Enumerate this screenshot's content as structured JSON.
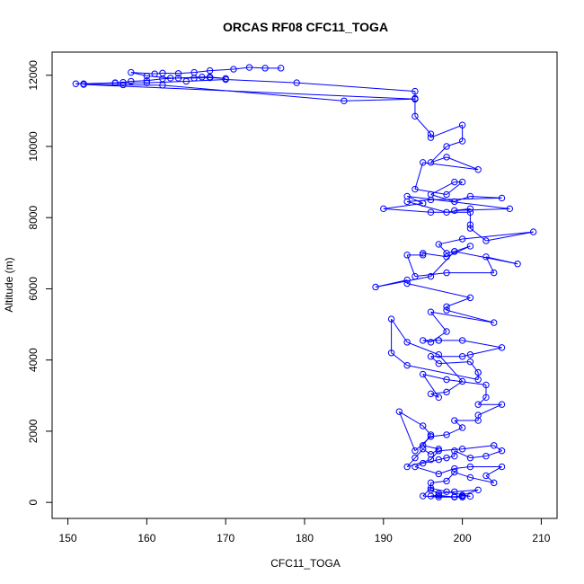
{
  "chart_data": {
    "type": "line",
    "title": "ORCAS RF08 CFC11_TOGA",
    "xlabel": "CFC11_TOGA",
    "ylabel": "Altitude (m)",
    "xlim": [
      148,
      212
    ],
    "ylim": [
      -450,
      12650
    ],
    "xticks": [
      150,
      160,
      170,
      180,
      190,
      200,
      210
    ],
    "yticks": [
      0,
      2000,
      4000,
      6000,
      8000,
      10000,
      12000
    ],
    "series": [
      {
        "color": "#0000ff",
        "markers": "open-circle",
        "points": [
          [
            177,
            12200
          ],
          [
            175,
            12200
          ],
          [
            173,
            12220
          ],
          [
            171,
            12170
          ],
          [
            168,
            12130
          ],
          [
            166,
            12080
          ],
          [
            164,
            12050
          ],
          [
            162,
            12060
          ],
          [
            161,
            12040
          ],
          [
            158,
            12080
          ],
          [
            160,
            11980
          ],
          [
            163,
            11920
          ],
          [
            166,
            11920
          ],
          [
            168,
            11930
          ],
          [
            170,
            11910
          ],
          [
            168,
            11950
          ],
          [
            167,
            11950
          ],
          [
            164,
            11920
          ],
          [
            162,
            11900
          ],
          [
            160,
            11850
          ],
          [
            158,
            11830
          ],
          [
            157,
            11800
          ],
          [
            156,
            11790
          ],
          [
            152,
            11760
          ],
          [
            151,
            11760
          ],
          [
            156,
            11780
          ],
          [
            160,
            11790
          ],
          [
            165,
            11830
          ],
          [
            170,
            11880
          ],
          [
            179,
            11790
          ],
          [
            194,
            11550
          ],
          [
            194,
            11350
          ],
          [
            194,
            11330
          ],
          [
            185,
            11280
          ],
          [
            162,
            11720
          ],
          [
            157,
            11730
          ],
          [
            152,
            11740
          ],
          [
            194,
            11330
          ],
          [
            194,
            10850
          ],
          [
            196,
            10350
          ],
          [
            196,
            10250
          ],
          [
            200,
            10600
          ],
          [
            200,
            10150
          ],
          [
            198,
            10000
          ],
          [
            196,
            9550
          ],
          [
            198,
            9700
          ],
          [
            202,
            9350
          ],
          [
            195,
            9550
          ],
          [
            194,
            8800
          ],
          [
            198,
            8650
          ],
          [
            200,
            9000
          ],
          [
            199,
            9000
          ],
          [
            196,
            8650
          ],
          [
            199,
            8450
          ],
          [
            201,
            8600
          ],
          [
            205,
            8550
          ],
          [
            196,
            8500
          ],
          [
            193,
            8450
          ],
          [
            198,
            8150
          ],
          [
            201,
            8250
          ],
          [
            199,
            8200
          ],
          [
            206,
            8250
          ],
          [
            193,
            8600
          ],
          [
            195,
            8400
          ],
          [
            190,
            8250
          ],
          [
            196,
            8150
          ],
          [
            201,
            8150
          ],
          [
            201,
            7800
          ],
          [
            201,
            7700
          ],
          [
            203,
            7350
          ],
          [
            209,
            7600
          ],
          [
            200,
            7400
          ],
          [
            197,
            7250
          ],
          [
            198,
            7000
          ],
          [
            199,
            7050
          ],
          [
            201,
            7200
          ],
          [
            198,
            6900
          ],
          [
            195,
            7000
          ],
          [
            195,
            6950
          ],
          [
            193,
            6950
          ],
          [
            194,
            6350
          ],
          [
            198,
            6450
          ],
          [
            204,
            6450
          ],
          [
            203,
            6900
          ],
          [
            207,
            6700
          ],
          [
            199,
            7050
          ],
          [
            196,
            6350
          ],
          [
            189,
            6050
          ],
          [
            193,
            6250
          ],
          [
            193,
            6150
          ],
          [
            201,
            5750
          ],
          [
            198,
            5500
          ],
          [
            198,
            5400
          ],
          [
            204,
            5050
          ],
          [
            196,
            5350
          ],
          [
            198,
            4800
          ],
          [
            196,
            4500
          ],
          [
            195,
            4550
          ],
          [
            197,
            4550
          ],
          [
            197,
            4550
          ],
          [
            200,
            4550
          ],
          [
            205,
            4350
          ],
          [
            201,
            4150
          ],
          [
            200,
            4100
          ],
          [
            196,
            4100
          ],
          [
            197,
            3900
          ],
          [
            201,
            3950
          ],
          [
            202,
            3650
          ],
          [
            202,
            3650
          ],
          [
            202,
            3450
          ],
          [
            193,
            3850
          ],
          [
            191,
            4200
          ],
          [
            191,
            5150
          ],
          [
            193,
            4500
          ],
          [
            197,
            4150
          ],
          [
            200,
            3400
          ],
          [
            198,
            3100
          ],
          [
            196,
            3050
          ],
          [
            197,
            2950
          ],
          [
            195,
            3600
          ],
          [
            198,
            3450
          ],
          [
            203,
            3300
          ],
          [
            203,
            2950
          ],
          [
            202,
            2750
          ],
          [
            205,
            2750
          ],
          [
            202,
            2450
          ],
          [
            202,
            2300
          ],
          [
            199,
            2300
          ],
          [
            200,
            2100
          ],
          [
            198,
            1900
          ],
          [
            196,
            1850
          ],
          [
            194,
            1450
          ],
          [
            192,
            2550
          ],
          [
            195,
            2150
          ],
          [
            196,
            1900
          ],
          [
            195,
            1600
          ],
          [
            197,
            1500
          ],
          [
            196,
            1350
          ],
          [
            195,
            1500
          ],
          [
            194,
            1250
          ],
          [
            193,
            1000
          ],
          [
            196,
            1200
          ],
          [
            197,
            1450
          ],
          [
            200,
            1500
          ],
          [
            204,
            1600
          ],
          [
            205,
            1450
          ],
          [
            203,
            1300
          ],
          [
            201,
            1250
          ],
          [
            199,
            1450
          ],
          [
            199,
            1300
          ],
          [
            198,
            1250
          ],
          [
            197,
            1200
          ],
          [
            195,
            1100
          ],
          [
            194,
            1000
          ],
          [
            197,
            800
          ],
          [
            199,
            950
          ],
          [
            201,
            1000
          ],
          [
            205,
            1000
          ],
          [
            203,
            750
          ],
          [
            204,
            550
          ],
          [
            201,
            700
          ],
          [
            199,
            850
          ],
          [
            198,
            600
          ],
          [
            196,
            550
          ],
          [
            196,
            350
          ],
          [
            197,
            250
          ],
          [
            199,
            300
          ],
          [
            202,
            350
          ],
          [
            200,
            200
          ],
          [
            199,
            150
          ],
          [
            197,
            200
          ],
          [
            196,
            180
          ],
          [
            199,
            160
          ],
          [
            200,
            180
          ],
          [
            201,
            170
          ],
          [
            198,
            300
          ],
          [
            196,
            400
          ],
          [
            195,
            180
          ],
          [
            197,
            150
          ],
          [
            200,
            150
          ]
        ]
      }
    ],
    "legend": "none",
    "grid": false
  }
}
